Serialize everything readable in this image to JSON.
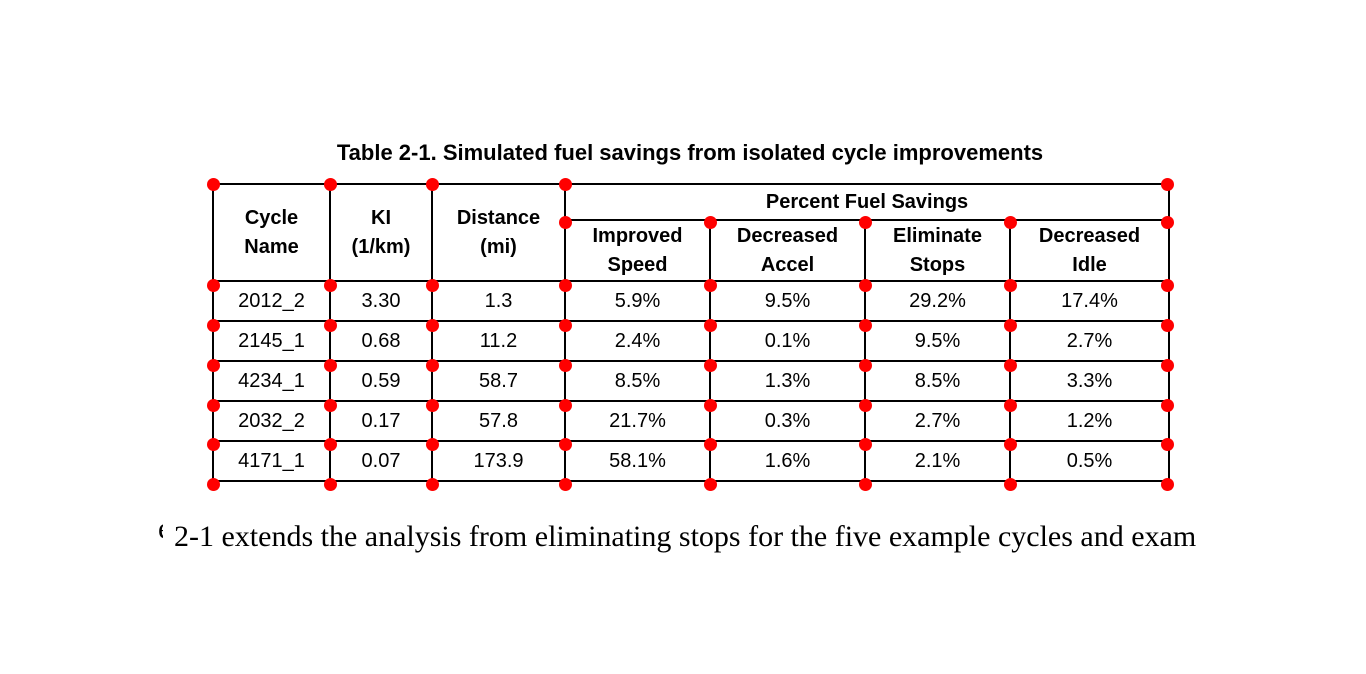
{
  "page": {
    "background_color": "#ffffff"
  },
  "markers": {
    "color": "#ff0000",
    "shape": "circle-dot"
  },
  "title": "Table 2-1. Simulated fuel savings from isolated cycle improvements",
  "table": {
    "group_header": "Percent Fuel Savings",
    "columns": [
      {
        "lines": [
          "Cycle",
          "Name"
        ]
      },
      {
        "lines": [
          "KI",
          "(1/km)"
        ]
      },
      {
        "lines": [
          "Distance",
          "(mi)"
        ]
      }
    ],
    "sub_columns": [
      {
        "lines": [
          "Improved",
          "Speed"
        ]
      },
      {
        "lines": [
          "Decreased",
          "Accel"
        ]
      },
      {
        "lines": [
          "Eliminate",
          "Stops"
        ]
      },
      {
        "lines": [
          "Decreased",
          "Idle"
        ]
      }
    ],
    "rows": [
      [
        "2012_2",
        "3.30",
        "1.3",
        "5.9%",
        "9.5%",
        "29.2%",
        "17.4%"
      ],
      [
        "2145_1",
        "0.68",
        "11.2",
        "2.4%",
        "0.1%",
        "9.5%",
        "2.7%"
      ],
      [
        "4234_1",
        "0.59",
        "58.7",
        "8.5%",
        "1.3%",
        "8.5%",
        "3.3%"
      ],
      [
        "2032_2",
        "0.17",
        "57.8",
        "21.7%",
        "0.3%",
        "2.7%",
        "1.2%"
      ],
      [
        "4171_1",
        "0.07",
        "173.9",
        "58.1%",
        "1.6%",
        "2.1%",
        "0.5%"
      ]
    ]
  },
  "body_text": {
    "clipped_fragment": "e",
    "text": "2-1 extends the analysis from eliminating stops for the five example cycles and exam"
  }
}
